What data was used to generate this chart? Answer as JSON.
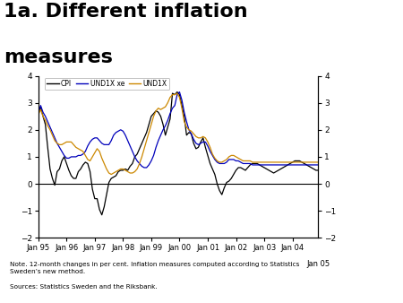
{
  "title_line1": "1a. Different inflation",
  "title_line2": "measures",
  "title_fontsize": 16,
  "note_text": "Note. 12-month changes in per cent. Inflation measures computed according to Statistics\nSweden’s new method.",
  "source_text": "Sources: Statistics Sweden and the Riksbank.",
  "ylim": [
    -2,
    4
  ],
  "yticks": [
    -2,
    -1,
    0,
    1,
    2,
    3,
    4
  ],
  "line_colors": {
    "CPI": "#000000",
    "UND1X_xe": "#0000bb",
    "UND1X": "#cc8800"
  },
  "legend_labels": [
    "CPI",
    "UND1X xe",
    "UND1X"
  ],
  "background_color": "#ffffff",
  "footer_bar_color": "#1a3a8a",
  "logo_bg_color": "#1a3a8a",
  "CPI": [
    2.6,
    2.85,
    2.5,
    2.2,
    1.35,
    0.55,
    0.2,
    -0.05,
    0.45,
    0.55,
    0.85,
    1.0,
    0.75,
    0.5,
    0.3,
    0.2,
    0.2,
    0.45,
    0.55,
    0.7,
    0.8,
    0.75,
    0.45,
    -0.2,
    -0.55,
    -0.55,
    -0.95,
    -1.15,
    -0.85,
    -0.4,
    0.05,
    0.2,
    0.25,
    0.3,
    0.45,
    0.5,
    0.5,
    0.55,
    0.5,
    0.65,
    0.75,
    1.0,
    1.1,
    1.3,
    1.5,
    1.7,
    1.9,
    2.2,
    2.5,
    2.6,
    2.7,
    2.65,
    2.5,
    2.2,
    1.8,
    2.1,
    2.4,
    3.35,
    3.3,
    3.4,
    3.3,
    2.9,
    2.5,
    1.8,
    1.9,
    1.85,
    1.5,
    1.3,
    1.35,
    1.55,
    1.7,
    1.35,
    1.05,
    0.75,
    0.55,
    0.35,
    0.0,
    -0.25,
    -0.4,
    -0.15,
    0.05,
    0.1,
    0.2,
    0.35,
    0.5,
    0.6,
    0.6,
    0.55,
    0.5,
    0.6,
    0.7,
    0.75,
    0.75,
    0.75,
    0.7,
    0.65,
    0.6,
    0.55,
    0.5,
    0.45,
    0.4,
    0.45,
    0.5,
    0.55,
    0.6,
    0.65,
    0.7,
    0.75,
    0.8,
    0.85,
    0.85,
    0.85,
    0.8,
    0.75,
    0.7,
    0.65,
    0.6,
    0.55,
    0.5,
    0.5
  ],
  "UND1X_xe": [
    2.6,
    2.9,
    2.65,
    2.5,
    2.3,
    2.1,
    1.9,
    1.7,
    1.5,
    1.35,
    1.2,
    1.05,
    0.95,
    0.95,
    1.0,
    1.0,
    1.0,
    1.05,
    1.05,
    1.1,
    1.2,
    1.4,
    1.55,
    1.65,
    1.7,
    1.7,
    1.6,
    1.5,
    1.45,
    1.45,
    1.45,
    1.6,
    1.8,
    1.9,
    1.95,
    2.0,
    1.95,
    1.8,
    1.6,
    1.4,
    1.2,
    1.0,
    0.85,
    0.75,
    0.65,
    0.6,
    0.6,
    0.7,
    0.85,
    1.05,
    1.35,
    1.6,
    1.8,
    2.0,
    2.15,
    2.35,
    2.6,
    2.8,
    2.9,
    3.3,
    3.4,
    3.1,
    2.65,
    2.3,
    2.0,
    1.85,
    1.65,
    1.5,
    1.45,
    1.5,
    1.55,
    1.55,
    1.4,
    1.2,
    1.05,
    0.9,
    0.8,
    0.75,
    0.75,
    0.75,
    0.8,
    0.9,
    0.9,
    0.9,
    0.85,
    0.85,
    0.8,
    0.75,
    0.75,
    0.75,
    0.75,
    0.7,
    0.7,
    0.7,
    0.7,
    0.7,
    0.7,
    0.7,
    0.7,
    0.7,
    0.7,
    0.7,
    0.7,
    0.7,
    0.7,
    0.7,
    0.7,
    0.7,
    0.7,
    0.7,
    0.7,
    0.7,
    0.7,
    0.7,
    0.7,
    0.7,
    0.7,
    0.7,
    0.7,
    0.7
  ],
  "UND1X": [
    2.55,
    2.75,
    2.5,
    2.35,
    2.15,
    2.0,
    1.8,
    1.6,
    1.5,
    1.45,
    1.45,
    1.5,
    1.55,
    1.55,
    1.55,
    1.45,
    1.35,
    1.3,
    1.25,
    1.2,
    1.05,
    0.9,
    0.85,
    1.0,
    1.15,
    1.3,
    1.2,
    0.95,
    0.75,
    0.55,
    0.4,
    0.35,
    0.4,
    0.45,
    0.5,
    0.55,
    0.55,
    0.5,
    0.45,
    0.4,
    0.4,
    0.45,
    0.55,
    0.75,
    1.0,
    1.3,
    1.6,
    1.9,
    2.2,
    2.5,
    2.7,
    2.8,
    2.75,
    2.8,
    2.85,
    3.0,
    3.2,
    3.3,
    3.3,
    3.35,
    3.2,
    2.8,
    2.3,
    2.1,
    2.0,
    1.95,
    1.85,
    1.75,
    1.7,
    1.7,
    1.75,
    1.7,
    1.55,
    1.35,
    1.1,
    0.95,
    0.85,
    0.8,
    0.8,
    0.85,
    0.9,
    1.0,
    1.05,
    1.05,
    1.0,
    0.95,
    0.9,
    0.85,
    0.85,
    0.85,
    0.85,
    0.8,
    0.8,
    0.8,
    0.8,
    0.8,
    0.8,
    0.8,
    0.8,
    0.8,
    0.8,
    0.8,
    0.8,
    0.8,
    0.8,
    0.8,
    0.8,
    0.8,
    0.8,
    0.8,
    0.8,
    0.8,
    0.8,
    0.8,
    0.8,
    0.8,
    0.8,
    0.8,
    0.8,
    0.8
  ]
}
